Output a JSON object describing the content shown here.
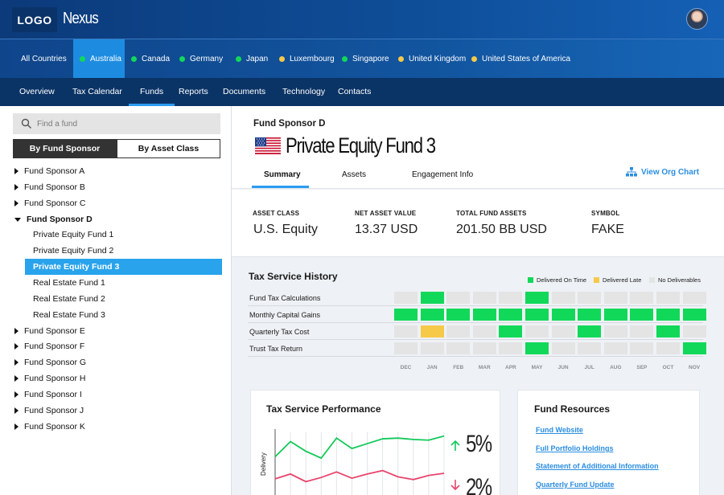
{
  "header": {
    "logo": "LOGO",
    "brand": "Nexus"
  },
  "countries": [
    {
      "name": "All Countries",
      "status": "none",
      "active": false
    },
    {
      "name": "Australia",
      "status": "green",
      "active": true
    },
    {
      "name": "Canada",
      "status": "green",
      "active": false
    },
    {
      "name": "Germany",
      "status": "green",
      "active": false
    },
    {
      "name": "Japan",
      "status": "green",
      "active": false
    },
    {
      "name": "Luxembourg",
      "status": "yellow",
      "active": false
    },
    {
      "name": "Singapore",
      "status": "green",
      "active": false
    },
    {
      "name": "United Kingdom",
      "status": "yellow",
      "active": false
    },
    {
      "name": "United States of America",
      "status": "yellow",
      "active": false
    }
  ],
  "nav": {
    "items": [
      "Overview",
      "Tax Calendar",
      "Funds",
      "Reports",
      "Documents",
      "Technology",
      "Contacts"
    ],
    "active": "Funds"
  },
  "sidebar": {
    "search_placeholder": "Find a fund",
    "toggle_on": "By Fund Sponsor",
    "toggle_off": "By Asset Class",
    "tree": [
      {
        "label": "Fund Sponsor A",
        "level": 0,
        "expanded": false
      },
      {
        "label": "Fund Sponsor B",
        "level": 0,
        "expanded": false
      },
      {
        "label": "Fund Sponsor C",
        "level": 0,
        "expanded": false
      },
      {
        "label": "Fund Sponsor D",
        "level": 0,
        "expanded": true,
        "bold": true
      },
      {
        "label": "Private Equity Fund 1",
        "level": 1
      },
      {
        "label": "Private Equity Fund 2",
        "level": 1
      },
      {
        "label": "Private Equity Fund 3",
        "level": 1,
        "selected": true
      },
      {
        "label": "Real Estate Fund 1",
        "level": 1
      },
      {
        "label": "Real Estate Fund 2",
        "level": 1
      },
      {
        "label": "Real Estate Fund 3",
        "level": 1
      },
      {
        "label": "Fund Sponsor E",
        "level": 0,
        "expanded": false
      },
      {
        "label": "Fund Sponsor F",
        "level": 0,
        "expanded": false
      },
      {
        "label": "Fund Sponsor G",
        "level": 0,
        "expanded": false
      },
      {
        "label": "Fund Sponsor H",
        "level": 0,
        "expanded": false
      },
      {
        "label": "Fund Sponsor I",
        "level": 0,
        "expanded": false
      },
      {
        "label": "Fund Sponsor J",
        "level": 0,
        "expanded": false
      },
      {
        "label": "Fund Sponsor K",
        "level": 0,
        "expanded": false
      }
    ]
  },
  "fund": {
    "sponsor": "Fund Sponsor D",
    "title": "Private Equity Fund 3",
    "flag": "us-flag-icon",
    "tabs": [
      "Summary",
      "Assets",
      "Engagement Info"
    ],
    "active_tab": "Summary",
    "org_chart": "View Org Chart"
  },
  "stats": [
    {
      "label": "ASSET CLASS",
      "value": "U.S. Equity"
    },
    {
      "label": "NET ASSET VALUE",
      "value": "13.37 USD"
    },
    {
      "label": "TOTAL FUND ASSETS",
      "value": "201.50 BB USD"
    },
    {
      "label": "SYMBOL",
      "value": "FAKE"
    }
  ],
  "history": {
    "title": "Tax Service History",
    "legend": [
      {
        "label": "Delivered On Time",
        "color": "#12d85a"
      },
      {
        "label": "Delivered Late",
        "color": "#f7c948"
      },
      {
        "label": "No Deliverables",
        "color": "#e4e4e4"
      }
    ],
    "months": [
      "DEC",
      "JAN",
      "FEB",
      "MAR",
      "APR",
      "MAY",
      "JUN",
      "JUL",
      "AUG",
      "SEP",
      "OCT",
      "NOV"
    ],
    "rows": [
      {
        "label": "Fund Tax Calculations",
        "cells": [
          "n",
          "g",
          "n",
          "n",
          "n",
          "g",
          "n",
          "n",
          "n",
          "n",
          "n",
          "n"
        ]
      },
      {
        "label": "Monthly Capital Gains",
        "cells": [
          "g",
          "g",
          "g",
          "g",
          "g",
          "g",
          "g",
          "g",
          "g",
          "g",
          "g",
          "g"
        ]
      },
      {
        "label": "Quarterly Tax Cost",
        "cells": [
          "n",
          "y",
          "n",
          "n",
          "g",
          "n",
          "n",
          "g",
          "n",
          "n",
          "g",
          "n"
        ]
      },
      {
        "label": "Trust Tax Return",
        "cells": [
          "n",
          "n",
          "n",
          "n",
          "n",
          "g",
          "n",
          "n",
          "n",
          "n",
          "n",
          "g"
        ]
      }
    ]
  },
  "performance": {
    "title": "Tax Service Performance",
    "ylabel": "Delivery",
    "up_value": "5%",
    "down_value": "2%",
    "up_color": "#12c95a",
    "down_color": "#e8456d",
    "series_up": [
      60,
      82,
      68,
      58,
      87,
      72,
      79,
      86,
      87,
      85,
      84,
      90
    ],
    "series_down": [
      28,
      35,
      24,
      30,
      38,
      29,
      35,
      40,
      31,
      27,
      33,
      36
    ]
  },
  "resources": {
    "title": "Fund Resources",
    "links": [
      "Fund Website",
      "Full Portfolio Holdings",
      "Statement of Additional Information",
      "Quarterly Fund Update"
    ]
  }
}
